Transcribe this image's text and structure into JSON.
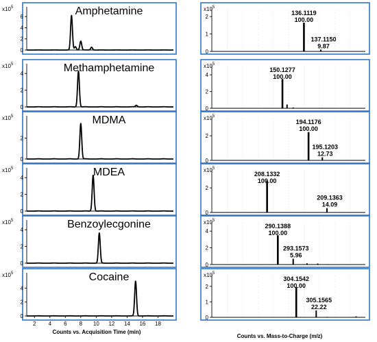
{
  "chart_data": [
    {
      "type": "line",
      "title": "Amphetamine",
      "scale_label": "x10",
      "scale_exp": "5",
      "ylim": [
        0,
        7.5
      ],
      "yticks": [
        0,
        2,
        4,
        6
      ],
      "xlim": [
        1,
        20
      ],
      "peaks": [
        {
          "rt": 6.8,
          "h": 6.2
        },
        {
          "rt": 7.3,
          "h": 0.6
        },
        {
          "rt": 8.0,
          "h": 1.6
        },
        {
          "rt": 9.4,
          "h": 0.5
        }
      ]
    },
    {
      "type": "line",
      "title": "Methamphetamine",
      "scale_label": "x10",
      "scale_exp": "5",
      "ylim": [
        0,
        5
      ],
      "yticks": [
        0,
        2,
        4
      ],
      "xlim": [
        1,
        20
      ],
      "peaks": [
        {
          "rt": 7.7,
          "h": 4.3
        },
        {
          "rt": 15.2,
          "h": 0.2
        }
      ]
    },
    {
      "type": "line",
      "title": "MDMA",
      "scale_label": "x10",
      "scale_exp": "5",
      "ylim": [
        0,
        4
      ],
      "yticks": [
        0,
        2
      ],
      "xlim": [
        1,
        20
      ],
      "peaks": [
        {
          "rt": 8.0,
          "h": 3.4
        }
      ]
    },
    {
      "type": "line",
      "title": "MDEA",
      "scale_label": "x10",
      "scale_exp": "5",
      "ylim": [
        0,
        5
      ],
      "yticks": [
        0,
        2,
        4
      ],
      "xlim": [
        1,
        20
      ],
      "peaks": [
        {
          "rt": 9.6,
          "h": 4.3
        }
      ]
    },
    {
      "type": "line",
      "title": "Benzoylecgonine",
      "scale_label": "x10",
      "scale_exp": "5",
      "ylim": [
        0,
        5
      ],
      "yticks": [
        0,
        2,
        4
      ],
      "xlim": [
        1,
        20
      ],
      "peaks": [
        {
          "rt": 10.4,
          "h": 3.6
        }
      ]
    },
    {
      "type": "line",
      "title": "Cocaine",
      "scale_label": "x10",
      "scale_exp": "5",
      "ylim": [
        0,
        6
      ],
      "yticks": [
        0,
        2,
        4
      ],
      "xlim": [
        1,
        20
      ],
      "xticks": [
        2,
        4,
        6,
        8,
        10,
        12,
        14,
        16,
        18
      ],
      "xlabel": "Counts vs. Acquisition Time (min)",
      "peaks": [
        {
          "rt": 15.1,
          "h": 5.0
        }
      ]
    },
    {
      "type": "bar",
      "scale_label": "x10",
      "scale_exp": "5",
      "ylim": [
        0,
        2.4
      ],
      "yticks": [
        0,
        1,
        2
      ],
      "xlim": [
        0,
        100
      ],
      "bars": [
        {
          "x": 60,
          "h": 1.65
        },
        {
          "x": 71,
          "h": 0.1
        },
        {
          "x": 88,
          "h": 0.02
        }
      ],
      "labels": [
        {
          "mz": "136.1119",
          "rel": "100.00"
        },
        {
          "mz": "137.1150",
          "rel": "9.87"
        }
      ]
    },
    {
      "type": "bar",
      "scale_label": "x10",
      "scale_exp": "5",
      "ylim": [
        0,
        5
      ],
      "yticks": [
        0,
        2,
        4
      ],
      "xlim": [
        0,
        100
      ],
      "bars": [
        {
          "x": 46,
          "h": 3.5
        },
        {
          "x": 49,
          "h": 0.45
        },
        {
          "x": 53,
          "h": 0.1
        },
        {
          "x": 70,
          "h": 0.05
        },
        {
          "x": 72,
          "h": 0.05
        },
        {
          "x": 20,
          "h": 0.05
        }
      ],
      "labels": [
        {
          "mz": "150.1277",
          "rel": "100.00"
        }
      ]
    },
    {
      "type": "bar",
      "scale_label": "x10",
      "scale_exp": "5",
      "ylim": [
        0,
        3.4
      ],
      "yticks": [
        0,
        2
      ],
      "xlim": [
        0,
        100
      ],
      "bars": [
        {
          "x": 63,
          "h": 2.3
        },
        {
          "x": 72,
          "h": 0.25
        },
        {
          "x": 84,
          "h": 0.03
        },
        {
          "x": 93,
          "h": 0.03
        }
      ],
      "labels": [
        {
          "mz": "194.1176",
          "rel": "100.00"
        },
        {
          "mz": "195.1203",
          "rel": "12.73"
        }
      ]
    },
    {
      "type": "bar",
      "scale_label": "x10",
      "scale_exp": "5",
      "ylim": [
        0,
        3.4
      ],
      "yticks": [
        0,
        2
      ],
      "xlim": [
        0,
        100
      ],
      "bars": [
        {
          "x": 36,
          "h": 2.6
        },
        {
          "x": 75,
          "h": 0.35
        },
        {
          "x": 83,
          "h": 0.03
        }
      ],
      "labels": [
        {
          "mz": "208.1332",
          "rel": "100.00"
        },
        {
          "mz": "209.1363",
          "rel": "14.09"
        }
      ]
    },
    {
      "type": "bar",
      "scale_label": "x10",
      "scale_exp": "5",
      "ylim": [
        0,
        5
      ],
      "yticks": [
        0,
        2,
        4
      ],
      "xlim": [
        0,
        100
      ],
      "bars": [
        {
          "x": 43,
          "h": 3.5
        },
        {
          "x": 53,
          "h": 0.7
        },
        {
          "x": 62,
          "h": 0.15
        },
        {
          "x": 69,
          "h": 0.12
        },
        {
          "x": 76,
          "h": 0.05
        }
      ],
      "labels": [
        {
          "mz": "290.1388",
          "rel": "100.00"
        },
        {
          "mz": "293.1573",
          "rel": "5.96"
        }
      ]
    },
    {
      "type": "bar",
      "scale_label": "x10",
      "scale_exp": "5",
      "ylim": [
        0,
        2.7
      ],
      "yticks": [
        0,
        1,
        2
      ],
      "xlim": [
        0,
        100
      ],
      "bars": [
        {
          "x": 55,
          "h": 1.95
        },
        {
          "x": 68,
          "h": 0.45
        },
        {
          "x": 75,
          "h": 0.03
        },
        {
          "x": 94,
          "h": 0.06
        }
      ],
      "xlabel": "Counts vs. Mass-to-Charge (m/z)",
      "labels": [
        {
          "mz": "304.1542",
          "rel": "100.00"
        },
        {
          "mz": "305.1565",
          "rel": "22.22"
        }
      ]
    }
  ]
}
